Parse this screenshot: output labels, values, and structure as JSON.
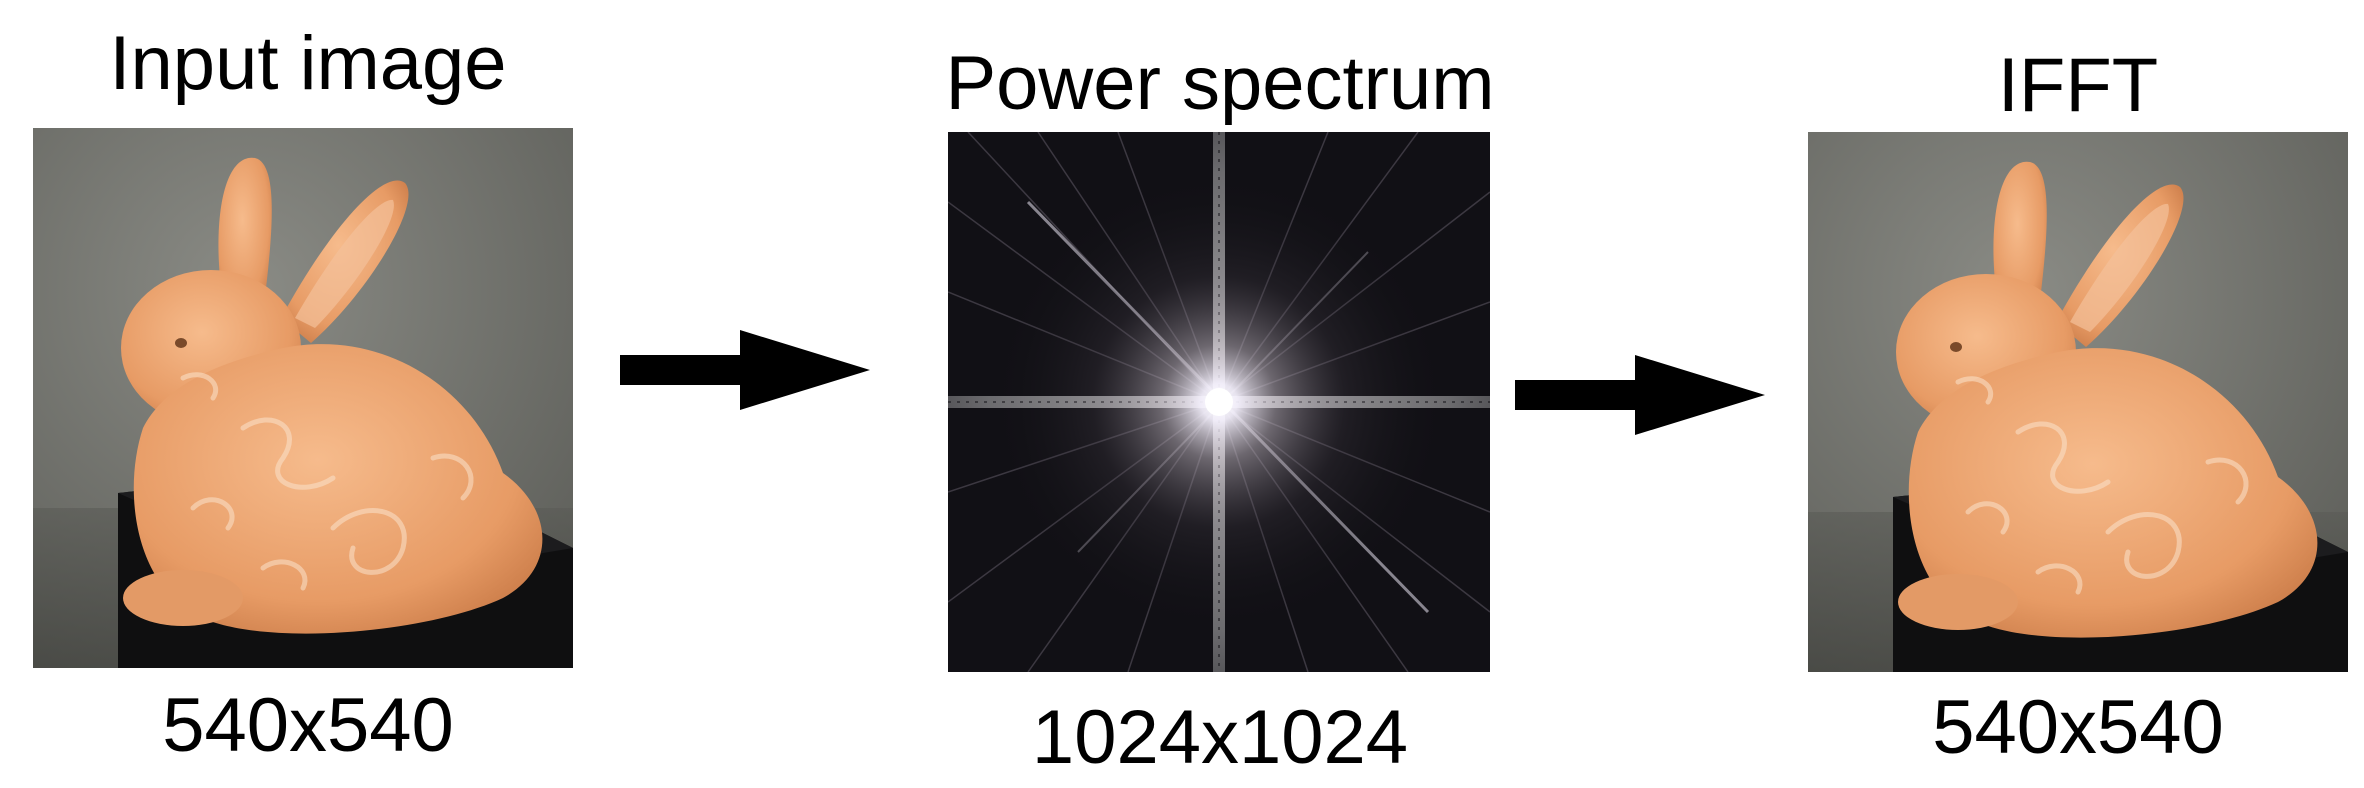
{
  "panels": [
    {
      "title": "Input image",
      "size_label": "540x540"
    },
    {
      "title": "Power spectrum",
      "size_label": "1024x1024"
    },
    {
      "title": "IFFT",
      "size_label": "540x540"
    }
  ],
  "colors": {
    "bunny": "#e8a06c",
    "studio_background": "#74756f",
    "spectrum_background": "#111015",
    "arrow": "#000000"
  }
}
